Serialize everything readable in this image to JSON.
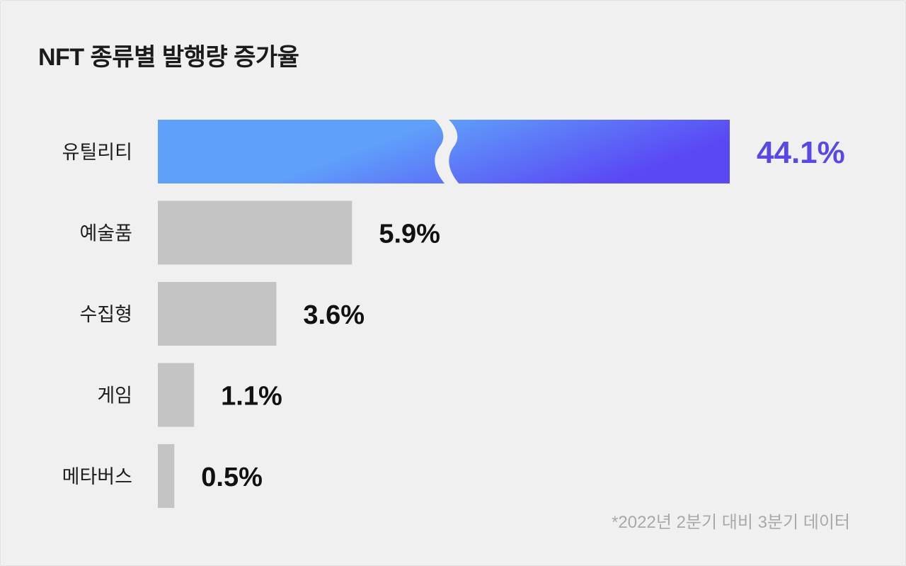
{
  "chart_data": {
    "type": "bar",
    "orientation": "horizontal",
    "title": "NFT 종류별 발행량 증가율",
    "categories": [
      "유틸리티",
      "예술품",
      "수집형",
      "게임",
      "메타버스"
    ],
    "values": [
      44.1,
      5.9,
      3.6,
      1.1,
      0.5
    ],
    "value_labels": [
      "44.1%",
      "5.9%",
      "3.6%",
      "1.1%",
      "0.5%"
    ],
    "unit": "%",
    "axis_break": true,
    "grid": false,
    "highlight_index": 0,
    "colors": {
      "highlight_start": "#5fa0fa",
      "highlight_end": "#5a48f4",
      "highlight_label": "#5a48e6",
      "bar": "#c4c4c4",
      "label": "#111111"
    }
  },
  "footnote": "*2022년 2분기 대비 3분기 데이터"
}
